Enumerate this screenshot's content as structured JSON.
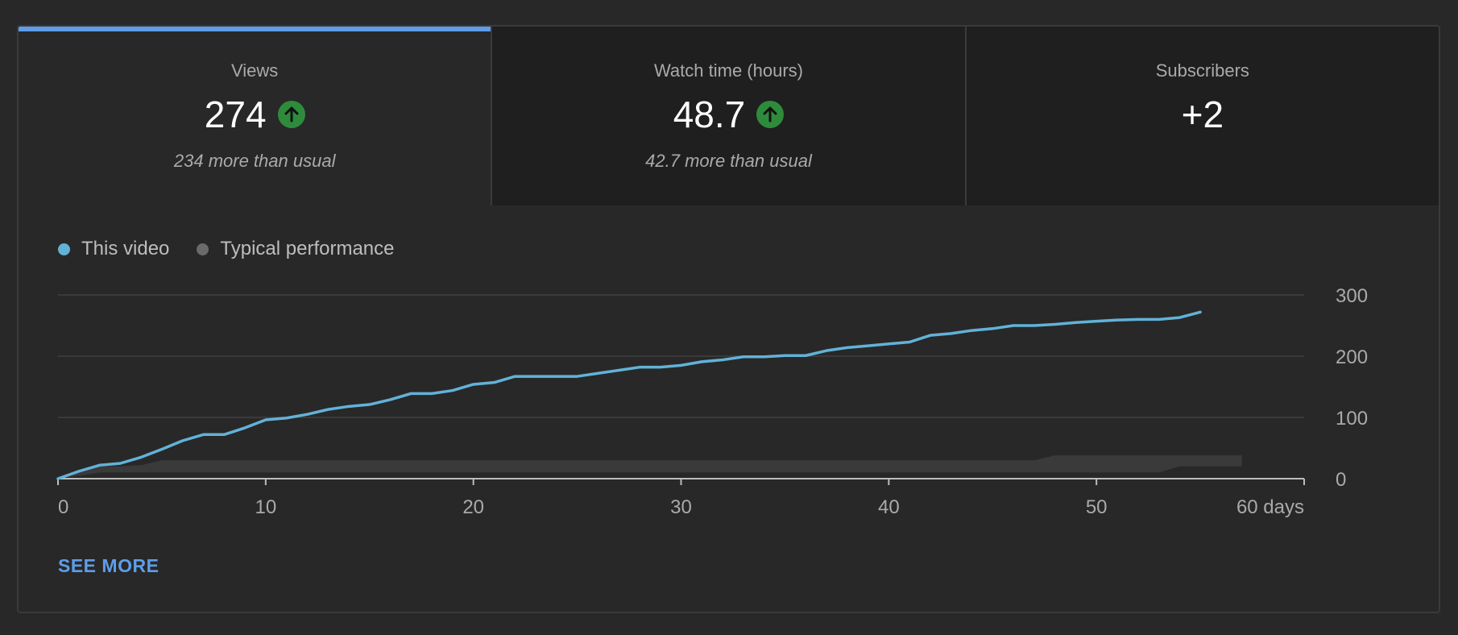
{
  "tabs": [
    {
      "label": "Views",
      "value": "274",
      "note": "234 more than usual",
      "trend": "up",
      "active": true
    },
    {
      "label": "Watch time (hours)",
      "value": "48.7",
      "note": "42.7 more than usual",
      "trend": "up",
      "active": false
    },
    {
      "label": "Subscribers",
      "value": "+2",
      "note": "",
      "trend": "",
      "active": false
    }
  ],
  "legend": [
    {
      "label": "This video",
      "color": "#62b2d8"
    },
    {
      "label": "Typical performance",
      "color": "#6a6a6a"
    }
  ],
  "see_more": "SEE MORE",
  "chart_data": {
    "type": "line",
    "xlim": [
      0,
      60
    ],
    "ylim": [
      0,
      300
    ],
    "x_ticks": [
      "0",
      "10",
      "20",
      "30",
      "40",
      "50",
      "60 days"
    ],
    "y_ticks": [
      "300",
      "200",
      "100",
      "0"
    ],
    "grid": true,
    "legend_position": "top-left",
    "series": [
      {
        "name": "This video",
        "color": "#62b2d8",
        "x": [
          0,
          1,
          2,
          3,
          4,
          5,
          6,
          7,
          8,
          9,
          10,
          11,
          12,
          13,
          14,
          15,
          16,
          17,
          18,
          19,
          20,
          21,
          22,
          23,
          24,
          25,
          26,
          27,
          28,
          29,
          30,
          31,
          32,
          33,
          34,
          35,
          36,
          37,
          38,
          39,
          40,
          41,
          42,
          43,
          44,
          45,
          46,
          47,
          48,
          49,
          50,
          51,
          52,
          53,
          54,
          55
        ],
        "y": [
          0,
          12,
          22,
          25,
          35,
          48,
          62,
          72,
          72,
          83,
          96,
          99,
          105,
          113,
          118,
          121,
          129,
          139,
          139,
          144,
          154,
          157,
          167,
          167,
          167,
          167,
          172,
          177,
          182,
          182,
          185,
          191,
          194,
          199,
          199,
          201,
          201,
          209,
          214,
          217,
          220,
          223,
          234,
          237,
          242,
          245,
          250,
          250,
          252,
          255,
          257,
          259,
          260,
          260,
          263,
          272
        ]
      }
    ],
    "typical_band": {
      "name": "Typical performance",
      "color": "#3a3a3a",
      "x": [
        0,
        1,
        2,
        3,
        4,
        5,
        10,
        20,
        30,
        40,
        47,
        48,
        50,
        52,
        53,
        54,
        57
      ],
      "upper": [
        0,
        15,
        20,
        20,
        22,
        30,
        30,
        30,
        30,
        30,
        30,
        38,
        38,
        38,
        38,
        38,
        38
      ],
      "lower": [
        0,
        5,
        10,
        10,
        10,
        10,
        10,
        10,
        10,
        10,
        10,
        10,
        10,
        10,
        10,
        20,
        20
      ]
    }
  }
}
